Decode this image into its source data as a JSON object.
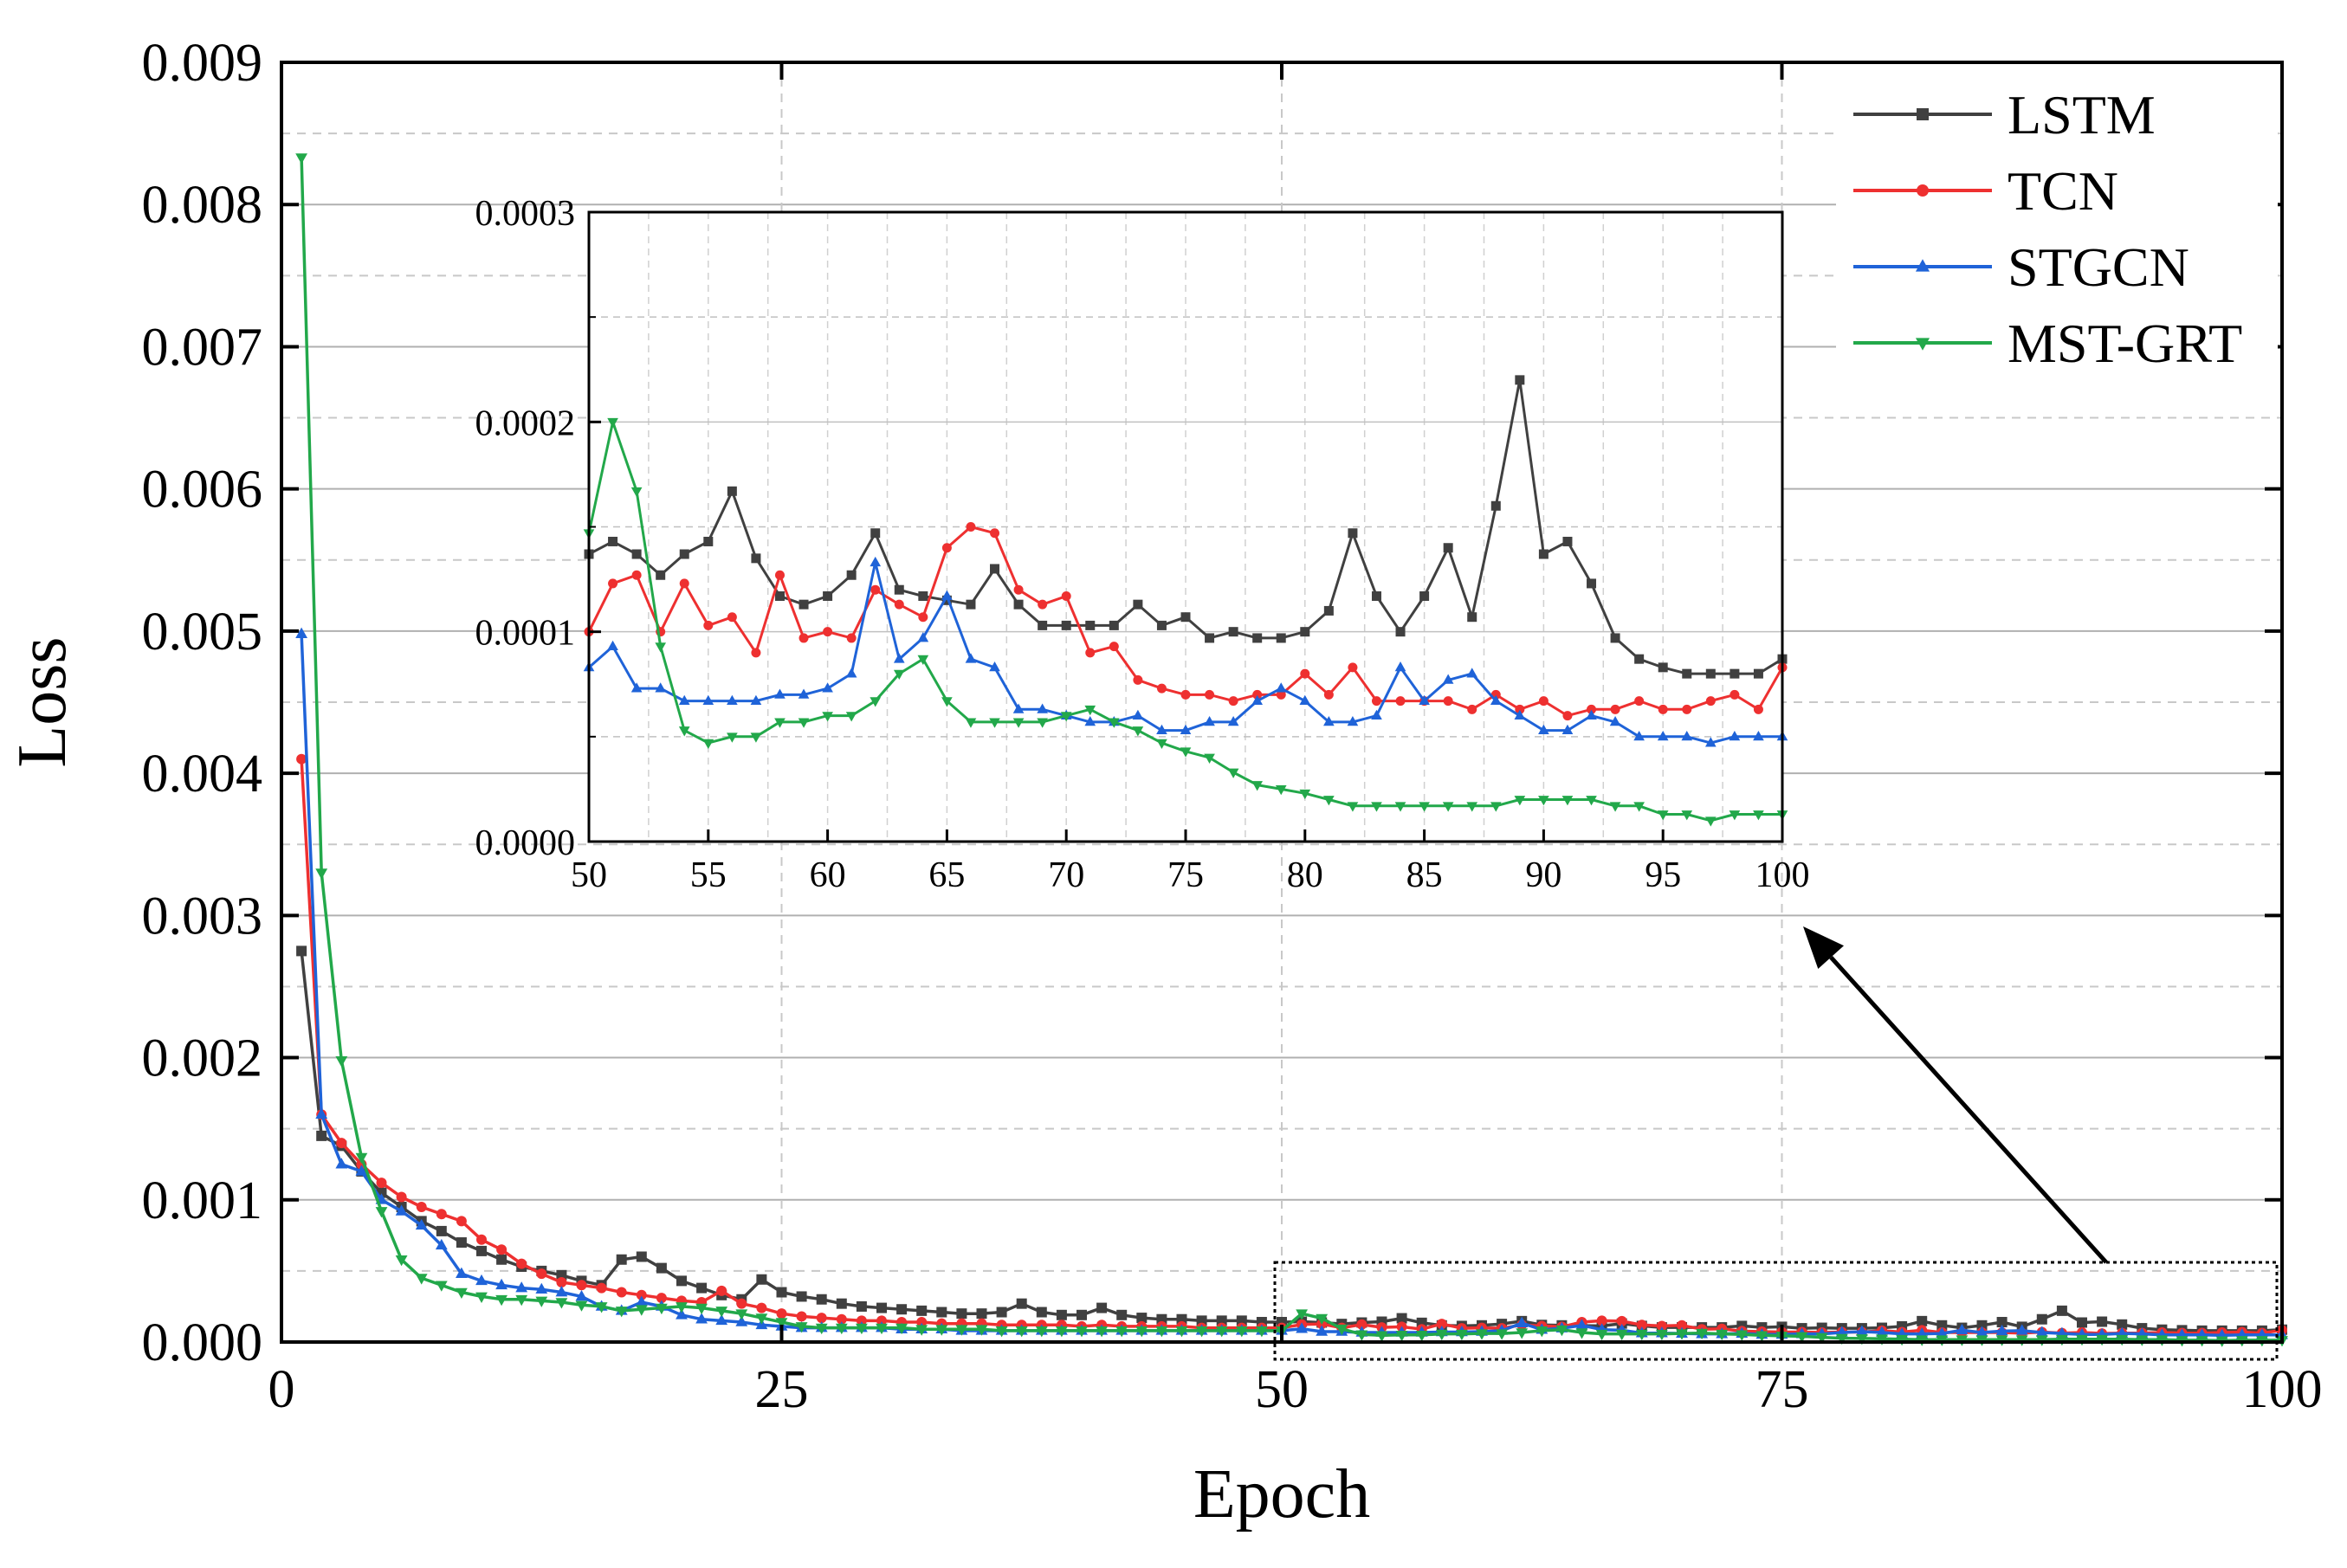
{
  "chart_data": {
    "type": "line",
    "xlabel": "Epoch",
    "ylabel": "Loss",
    "xlim": [
      0,
      100
    ],
    "ylim": [
      0,
      0.009
    ],
    "x_ticks": [
      "0",
      "25",
      "50",
      "75",
      "100"
    ],
    "y_ticks": [
      "0.000",
      "0.001",
      "0.002",
      "0.003",
      "0.004",
      "0.005",
      "0.006",
      "0.007",
      "0.008",
      "0.009"
    ],
    "legend": {
      "position": "top-right",
      "entries": [
        "LSTM",
        "TCN",
        "STGCN",
        "MST-GRT"
      ]
    },
    "colors": {
      "LSTM": "#404040",
      "TCN": "#ee3030",
      "STGCN": "#1f63d8",
      "MST-GRT": "#22a84a"
    },
    "markers": {
      "LSTM": "square",
      "TCN": "circle",
      "STGCN": "triangle-up",
      "MST-GRT": "triangle-down"
    },
    "annotation": "dotted box over epochs 50-100 with arrow pointing to zoomed inset",
    "inset": {
      "xlim": [
        50,
        100
      ],
      "ylim": [
        0,
        0.0003
      ],
      "x_ticks": [
        "50",
        "55",
        "60",
        "65",
        "70",
        "75",
        "80",
        "85",
        "90",
        "95",
        "100"
      ],
      "y_ticks": [
        "0.0000",
        "0.0001",
        "0.0002",
        "0.0003"
      ]
    },
    "early_series": [
      {
        "name": "LSTM",
        "points": [
          [
            1,
            0.00275
          ],
          [
            2,
            0.00145
          ],
          [
            3,
            0.00138
          ],
          [
            4,
            0.0012
          ],
          [
            5,
            0.00105
          ],
          [
            6,
            0.00095
          ],
          [
            7,
            0.00085
          ],
          [
            8,
            0.00078
          ],
          [
            9,
            0.0007
          ],
          [
            10,
            0.00064
          ],
          [
            11,
            0.00058
          ],
          [
            12,
            0.00053
          ],
          [
            13,
            0.0005
          ],
          [
            14,
            0.00047
          ],
          [
            15,
            0.00043
          ],
          [
            16,
            0.0004
          ],
          [
            17,
            0.00058
          ],
          [
            18,
            0.0006
          ],
          [
            19,
            0.00052
          ],
          [
            20,
            0.00043
          ],
          [
            21,
            0.00038
          ],
          [
            22,
            0.00033
          ],
          [
            23,
            0.0003
          ],
          [
            24,
            0.00044
          ],
          [
            25,
            0.00035
          ],
          [
            26,
            0.00032
          ],
          [
            27,
            0.0003
          ],
          [
            28,
            0.00027
          ],
          [
            29,
            0.00025
          ],
          [
            30,
            0.00024
          ],
          [
            31,
            0.00023
          ],
          [
            32,
            0.00022
          ],
          [
            33,
            0.00021
          ],
          [
            34,
            0.0002
          ],
          [
            35,
            0.0002
          ],
          [
            36,
            0.00021
          ],
          [
            37,
            0.00027
          ],
          [
            38,
            0.00021
          ],
          [
            39,
            0.00019
          ],
          [
            40,
            0.00019
          ],
          [
            41,
            0.00024
          ],
          [
            42,
            0.00019
          ],
          [
            43,
            0.00017
          ],
          [
            44,
            0.00016
          ],
          [
            45,
            0.00016
          ],
          [
            46,
            0.00015
          ],
          [
            47,
            0.00015
          ],
          [
            48,
            0.00015
          ],
          [
            49,
            0.00014
          ],
          [
            50,
            0.00014
          ]
        ]
      },
      {
        "name": "TCN",
        "points": [
          [
            1,
            0.0041
          ],
          [
            2,
            0.0016
          ],
          [
            3,
            0.0014
          ],
          [
            4,
            0.00125
          ],
          [
            5,
            0.00112
          ],
          [
            6,
            0.00102
          ],
          [
            7,
            0.00095
          ],
          [
            8,
            0.0009
          ],
          [
            9,
            0.00085
          ],
          [
            10,
            0.00072
          ],
          [
            11,
            0.00065
          ],
          [
            12,
            0.00055
          ],
          [
            13,
            0.00048
          ],
          [
            14,
            0.00042
          ],
          [
            15,
            0.0004
          ],
          [
            16,
            0.00038
          ],
          [
            17,
            0.00035
          ],
          [
            18,
            0.00033
          ],
          [
            19,
            0.00031
          ],
          [
            20,
            0.00029
          ],
          [
            21,
            0.00028
          ],
          [
            22,
            0.00036
          ],
          [
            23,
            0.00027
          ],
          [
            24,
            0.00024
          ],
          [
            25,
            0.0002
          ],
          [
            26,
            0.00018
          ],
          [
            27,
            0.00017
          ],
          [
            28,
            0.00016
          ],
          [
            29,
            0.00015
          ],
          [
            30,
            0.00015
          ],
          [
            31,
            0.00014
          ],
          [
            32,
            0.00014
          ],
          [
            33,
            0.00013
          ],
          [
            34,
            0.00013
          ],
          [
            35,
            0.00013
          ],
          [
            36,
            0.00012
          ],
          [
            37,
            0.00012
          ],
          [
            38,
            0.00012
          ],
          [
            39,
            0.00012
          ],
          [
            40,
            0.00011
          ],
          [
            41,
            0.00012
          ],
          [
            42,
            0.00011
          ],
          [
            43,
            0.00011
          ],
          [
            44,
            0.00011
          ],
          [
            45,
            0.00011
          ],
          [
            46,
            0.0001
          ],
          [
            47,
            0.0001
          ],
          [
            48,
            0.0001
          ],
          [
            49,
            0.0001
          ],
          [
            50,
            0.0001
          ]
        ]
      },
      {
        "name": "STGCN",
        "points": [
          [
            1,
            0.00498
          ],
          [
            2,
            0.0016
          ],
          [
            3,
            0.00125
          ],
          [
            4,
            0.0012
          ],
          [
            5,
            0.001
          ],
          [
            6,
            0.00092
          ],
          [
            7,
            0.00082
          ],
          [
            8,
            0.00068
          ],
          [
            9,
            0.00048
          ],
          [
            10,
            0.00043
          ],
          [
            11,
            0.0004
          ],
          [
            12,
            0.00038
          ],
          [
            13,
            0.00037
          ],
          [
            14,
            0.00035
          ],
          [
            15,
            0.00032
          ],
          [
            16,
            0.00025
          ],
          [
            17,
            0.00022
          ],
          [
            18,
            0.00028
          ],
          [
            19,
            0.00025
          ],
          [
            20,
            0.00019
          ],
          [
            21,
            0.00016
          ],
          [
            22,
            0.00015
          ],
          [
            23,
            0.00014
          ],
          [
            24,
            0.00012
          ],
          [
            25,
            0.00011
          ],
          [
            26,
            0.0001
          ],
          [
            27,
            0.0001
          ],
          [
            28,
            0.0001
          ],
          [
            29,
            0.0001
          ],
          [
            30,
            0.0001
          ],
          [
            31,
            9e-05
          ],
          [
            32,
            9e-05
          ],
          [
            33,
            9e-05
          ],
          [
            34,
            8e-05
          ],
          [
            35,
            8e-05
          ],
          [
            36,
            8e-05
          ],
          [
            37,
            8e-05
          ],
          [
            38,
            8e-05
          ],
          [
            39,
            8e-05
          ],
          [
            40,
            8e-05
          ],
          [
            41,
            8e-05
          ],
          [
            42,
            8e-05
          ],
          [
            43,
            8e-05
          ],
          [
            44,
            8e-05
          ],
          [
            45,
            8e-05
          ],
          [
            46,
            8e-05
          ],
          [
            47,
            8e-05
          ],
          [
            48,
            8e-05
          ],
          [
            49,
            8e-05
          ],
          [
            50,
            8e-05
          ]
        ]
      },
      {
        "name": "MST-GRT",
        "points": [
          [
            1,
            0.00833
          ],
          [
            2,
            0.0033
          ],
          [
            3,
            0.00198
          ],
          [
            4,
            0.0013
          ],
          [
            5,
            0.00092
          ],
          [
            6,
            0.00058
          ],
          [
            7,
            0.00045
          ],
          [
            8,
            0.0004
          ],
          [
            9,
            0.00035
          ],
          [
            10,
            0.00032
          ],
          [
            11,
            0.0003
          ],
          [
            12,
            0.0003
          ],
          [
            13,
            0.00029
          ],
          [
            14,
            0.00028
          ],
          [
            15,
            0.00026
          ],
          [
            16,
            0.00025
          ],
          [
            17,
            0.00022
          ],
          [
            18,
            0.00023
          ],
          [
            19,
            0.00024
          ],
          [
            20,
            0.00025
          ],
          [
            21,
            0.00024
          ],
          [
            22,
            0.00022
          ],
          [
            23,
            0.0002
          ],
          [
            24,
            0.00017
          ],
          [
            25,
            0.00014
          ],
          [
            26,
            0.00011
          ],
          [
            27,
            0.0001
          ],
          [
            28,
            0.0001
          ],
          [
            29,
            0.0001
          ],
          [
            30,
            0.0001
          ],
          [
            31,
            0.0001
          ],
          [
            32,
            9e-05
          ],
          [
            33,
            9e-05
          ],
          [
            34,
            9e-05
          ],
          [
            35,
            9e-05
          ],
          [
            36,
            8e-05
          ],
          [
            37,
            8e-05
          ],
          [
            38,
            8e-05
          ],
          [
            39,
            8e-05
          ],
          [
            40,
            8e-05
          ],
          [
            41,
            8e-05
          ],
          [
            42,
            8e-05
          ],
          [
            43,
            8e-05
          ],
          [
            44,
            8e-05
          ],
          [
            45,
            8e-05
          ],
          [
            46,
            8e-05
          ],
          [
            47,
            8e-05
          ],
          [
            48,
            8e-05
          ],
          [
            49,
            8e-05
          ],
          [
            50,
            8e-05
          ]
        ]
      }
    ],
    "late_x": [
      50,
      51,
      52,
      53,
      54,
      55,
      56,
      57,
      58,
      59,
      60,
      61,
      62,
      63,
      64,
      65,
      66,
      67,
      68,
      69,
      70,
      71,
      72,
      73,
      74,
      75,
      76,
      77,
      78,
      79,
      80,
      81,
      82,
      83,
      84,
      85,
      86,
      87,
      88,
      89,
      90,
      91,
      92,
      93,
      94,
      95,
      96,
      97,
      98,
      99,
      100
    ],
    "late_series": [
      {
        "name": "LSTM",
        "values": [
          0.000137,
          0.000143,
          0.000137,
          0.000127,
          0.000137,
          0.000143,
          0.000167,
          0.000135,
          0.000117,
          0.000113,
          0.000117,
          0.000127,
          0.000147,
          0.00012,
          0.000117,
          0.000115,
          0.000113,
          0.00013,
          0.000113,
          0.000103,
          0.000103,
          0.000103,
          0.000103,
          0.000113,
          0.000103,
          0.000107,
          9.7e-05,
          0.0001,
          9.7e-05,
          9.7e-05,
          0.0001,
          0.00011,
          0.000147,
          0.000117,
          0.0001,
          0.000117,
          0.00014,
          0.000107,
          0.00016,
          0.00022,
          0.000137,
          0.000143,
          0.000123,
          9.7e-05,
          8.7e-05,
          8.3e-05,
          8e-05,
          8e-05,
          8e-05,
          8e-05,
          8.7e-05
        ]
      },
      {
        "name": "TCN",
        "values": [
          0.0001,
          0.000123,
          0.000127,
          0.0001,
          0.000123,
          0.000103,
          0.000107,
          9e-05,
          0.000127,
          9.7e-05,
          0.0001,
          9.7e-05,
          0.00012,
          0.000113,
          0.000107,
          0.00014,
          0.00015,
          0.000147,
          0.00012,
          0.000113,
          0.000117,
          9e-05,
          9.3e-05,
          7.7e-05,
          7.3e-05,
          7e-05,
          7e-05,
          6.7e-05,
          7e-05,
          7e-05,
          8e-05,
          7e-05,
          8.3e-05,
          6.7e-05,
          6.7e-05,
          6.7e-05,
          6.7e-05,
          6.3e-05,
          7e-05,
          6.3e-05,
          6.7e-05,
          6e-05,
          6.3e-05,
          6.3e-05,
          6.7e-05,
          6.3e-05,
          6.3e-05,
          6.7e-05,
          7e-05,
          6.3e-05,
          8.3e-05
        ]
      },
      {
        "name": "STGCN",
        "values": [
          8.3e-05,
          9.3e-05,
          7.3e-05,
          7.3e-05,
          6.7e-05,
          6.7e-05,
          6.7e-05,
          6.7e-05,
          7e-05,
          7e-05,
          7.3e-05,
          8e-05,
          0.000133,
          8.7e-05,
          9.7e-05,
          0.000117,
          8.7e-05,
          8.3e-05,
          6.3e-05,
          6.3e-05,
          6e-05,
          5.7e-05,
          5.7e-05,
          6e-05,
          5.3e-05,
          5.3e-05,
          5.7e-05,
          5.7e-05,
          6.7e-05,
          7.3e-05,
          6.7e-05,
          5.7e-05,
          5.7e-05,
          6e-05,
          8.3e-05,
          6.7e-05,
          7.7e-05,
          8e-05,
          6.7e-05,
          6e-05,
          5.3e-05,
          5.3e-05,
          6e-05,
          5.7e-05,
          5e-05,
          5e-05,
          5e-05,
          4.7e-05,
          5e-05,
          5e-05,
          5e-05
        ]
      },
      {
        "name": "MST-GRT",
        "values": [
          0.000147,
          0.0002,
          0.000167,
          9.3e-05,
          5.3e-05,
          4.7e-05,
          5e-05,
          5e-05,
          5.7e-05,
          5.7e-05,
          6e-05,
          6e-05,
          6.7e-05,
          8e-05,
          8.7e-05,
          6.7e-05,
          5.7e-05,
          5.7e-05,
          5.7e-05,
          5.7e-05,
          6e-05,
          6.3e-05,
          5.7e-05,
          5.3e-05,
          4.7e-05,
          4.3e-05,
          4e-05,
          3.3e-05,
          2.7e-05,
          2.5e-05,
          2.3e-05,
          2e-05,
          1.7e-05,
          1.7e-05,
          1.7e-05,
          1.7e-05,
          1.7e-05,
          1.7e-05,
          1.7e-05,
          2e-05,
          2e-05,
          2e-05,
          2e-05,
          1.7e-05,
          1.7e-05,
          1.3e-05,
          1.3e-05,
          1e-05,
          1.3e-05,
          1.3e-05,
          1.3e-05
        ]
      }
    ]
  }
}
